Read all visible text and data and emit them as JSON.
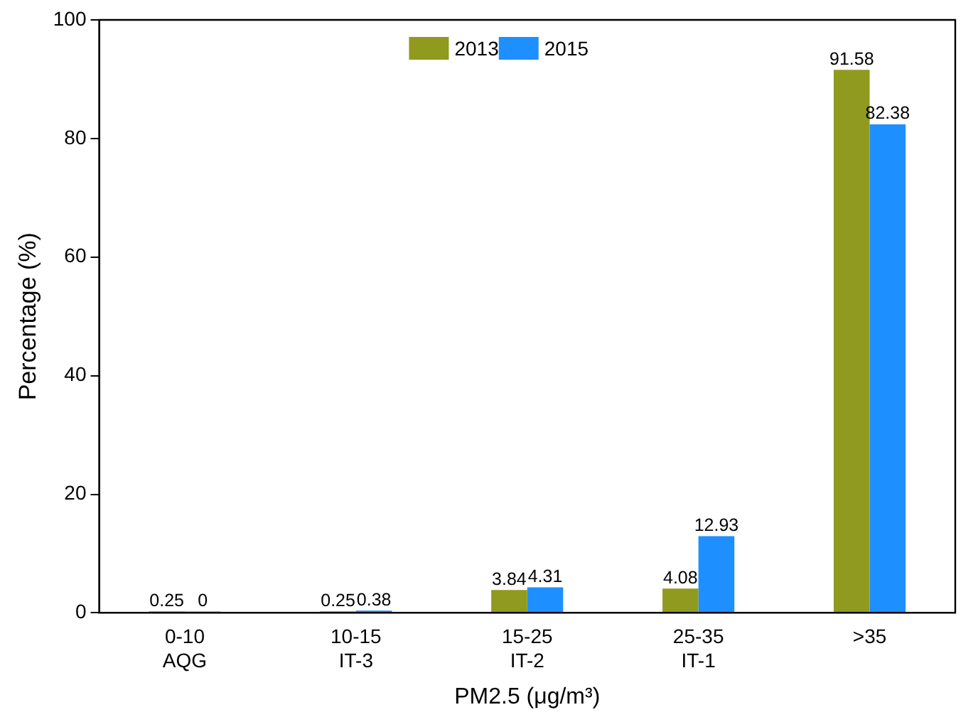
{
  "chart_data": {
    "type": "bar",
    "xlabel": "PM2.5 (μg/m³)",
    "ylabel": "Percentage (%)",
    "categories": [
      "0-10\nAQG",
      "10-15\nIT-3",
      "15-25\nIT-2",
      "25-35\nIT-1",
      ">35"
    ],
    "series": [
      {
        "name": "2013",
        "color": "#8f9a1f",
        "values": [
          0.25,
          0.25,
          3.84,
          4.08,
          91.58
        ]
      },
      {
        "name": "2015",
        "color": "#1e8fff",
        "values": [
          0,
          0.38,
          4.31,
          12.93,
          82.38
        ]
      }
    ],
    "ylim": [
      0,
      100
    ],
    "yticks": [
      0,
      20,
      40,
      60,
      80,
      100
    ],
    "grid": false,
    "legend": "top",
    "data_labels": true
  }
}
